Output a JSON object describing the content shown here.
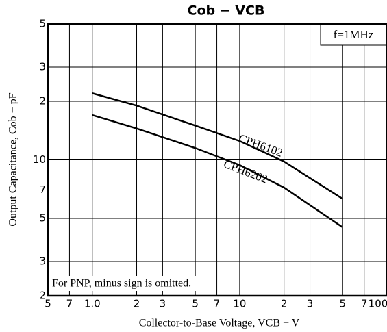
{
  "chart_data": {
    "type": "line",
    "title": "Cob  −  VCB",
    "x_label": "Collector-to-Base Voltage, VCB  −  V",
    "y_label": "Output Capacitance, Cob  −  pF",
    "annotations": [
      "f=1MHz",
      "For PNP, minus sign is omitted."
    ],
    "x": [
      1,
      2,
      5,
      10,
      20,
      50
    ],
    "series": [
      {
        "name": "CPH6102",
        "color": "#000000",
        "values": [
          22,
          19,
          15,
          12.5,
          9.8,
          6.3
        ]
      },
      {
        "name": "CPH6202",
        "color": "#000000",
        "values": [
          17,
          14.5,
          11.5,
          9.4,
          7.2,
          4.5
        ]
      }
    ],
    "xlog": true,
    "ylog": true,
    "grid": true,
    "xlim": [
      0.5,
      100
    ],
    "xticks": [
      {
        "value": 0.5,
        "label": "5"
      },
      {
        "value": 0.7,
        "label": "7"
      },
      {
        "value": 1,
        "label": "1.0"
      },
      2,
      3,
      5,
      7,
      10,
      {
        "value": 20,
        "label": "2"
      },
      {
        "value": 30,
        "label": "3"
      },
      {
        "value": 50,
        "label": "5"
      },
      {
        "value": 70,
        "label": "7"
      },
      100
    ],
    "ylim": [
      2,
      50
    ],
    "yticks": [
      2,
      3,
      5,
      7,
      10,
      {
        "value": 20,
        "label": "2"
      },
      {
        "value": 30,
        "label": "3"
      },
      {
        "value": 50,
        "label": "5"
      }
    ]
  }
}
